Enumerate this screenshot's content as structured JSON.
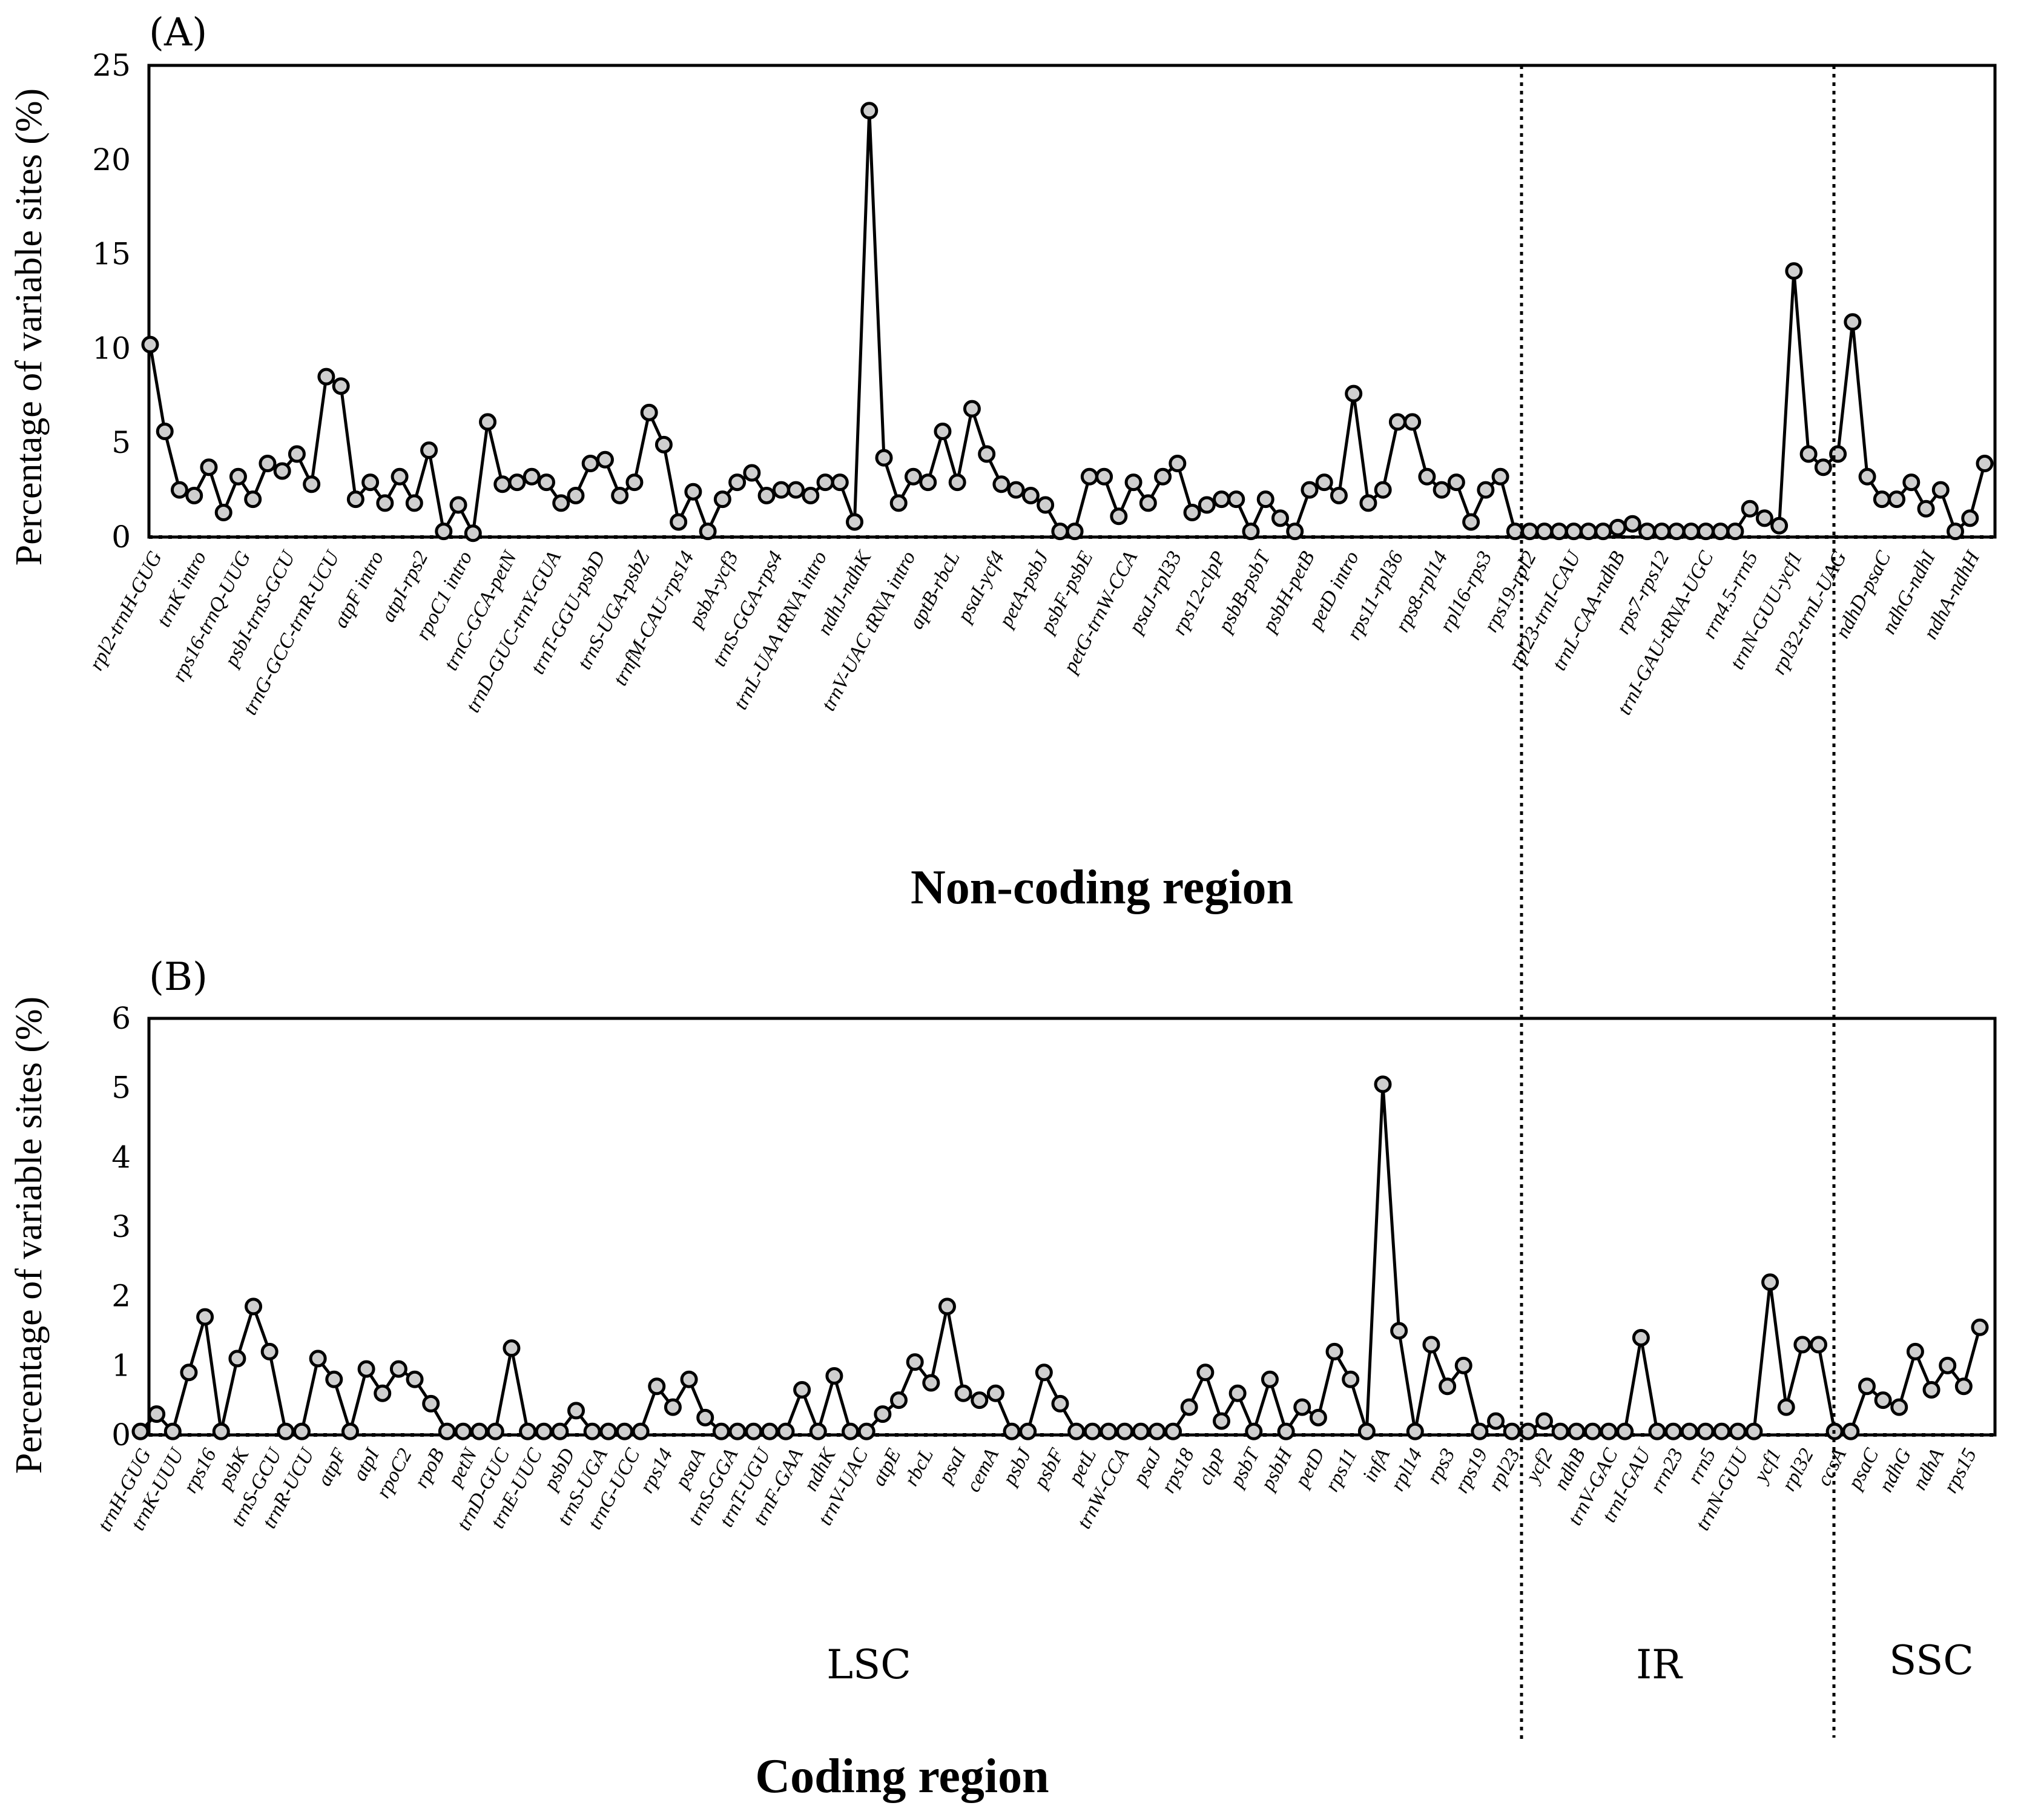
{
  "chart_data": [
    {
      "panel": "(A)",
      "type": "line",
      "ylabel": "Percentage of variable sites (%)",
      "xlabel": "Non-coding region",
      "ylim": [
        0,
        25
      ],
      "yticks": [
        0,
        5,
        10,
        15,
        20,
        25
      ],
      "series": [
        {
          "name": "Non-coding region",
          "values": [
            10.2,
            5.6,
            2.5,
            2.2,
            3.7,
            1.3,
            3.2,
            2.0,
            3.9,
            3.5,
            4.4,
            2.8,
            8.5,
            8.0,
            2.0,
            2.9,
            1.8,
            3.2,
            1.8,
            4.6,
            0.3,
            1.7,
            0.2,
            6.1,
            2.8,
            2.9,
            3.2,
            2.9,
            1.8,
            2.2,
            3.9,
            4.1,
            2.2,
            2.9,
            6.6,
            4.9,
            0.8,
            2.4,
            0.3,
            2.0,
            2.9,
            3.4,
            2.2,
            2.5,
            2.5,
            2.2,
            2.9,
            2.9,
            0.8,
            22.6,
            4.2,
            1.8,
            3.2,
            2.9,
            5.6,
            2.9,
            6.8,
            4.4,
            2.8,
            2.5,
            2.2,
            1.7,
            0.3,
            0.3,
            3.2,
            3.2,
            1.1,
            2.9,
            1.8,
            3.2,
            3.9,
            1.3,
            1.7,
            2.0,
            2.0,
            0.3,
            2.0,
            1.0,
            0.3,
            2.5,
            2.9,
            2.2,
            7.6,
            1.8,
            2.5,
            6.1,
            6.1,
            3.2,
            2.5,
            2.9,
            0.8,
            2.5,
            3.2,
            0.3,
            0.3,
            0.3,
            0.3,
            0.3,
            0.3,
            0.3,
            0.5,
            0.7,
            0.3,
            0.3,
            0.3,
            0.3,
            0.3,
            0.3,
            0.3,
            1.5,
            1.0,
            0.6,
            14.1,
            4.4,
            3.7,
            4.4,
            11.4,
            3.2,
            2.0,
            2.0,
            2.9,
            1.5,
            2.5,
            0.3,
            1.0,
            3.9
          ]
        }
      ],
      "tick_labels": [
        "rpl2-trnH-GUG",
        "trnK intro",
        "rps16-trnQ-UUG",
        "psbI-trnS-GCU",
        "trnG-GCC-trnR-UCU",
        "atpF intro",
        "atpI-rps2",
        "rpoC1 intro",
        "trnC-GCA-petN",
        "trnD-GUC-trnY-GUA",
        "trnT-GGU-psbD",
        "trnS-UGA-psbZ",
        "trnfM-CAU-rps14",
        "psbA-ycf3",
        "trnS-GGA-rps4",
        "trnL-UAA tRNA intro",
        "ndhJ-ndhK",
        "trnV-UAC tRNA intro",
        "aptB-rbcL",
        "psaI-ycf4",
        "petA-psbJ",
        "psbF-psbE",
        "petG-trnW-CCA",
        "psaJ-rpl33",
        "rps12-clpP",
        "psbB-psbT",
        "psbH-petB",
        "petD intro",
        "rps11-rpl36",
        "rps8-rpl14",
        "rpl16-rps3",
        "rps19-rpl2",
        "rpl23-trnI-CAU",
        "trnL-CAA-ndhB",
        "rps7-rps12",
        "trnI-GAU-tRNA-UGC",
        "rrn4.5-rrn5",
        "trnN-GUU-ycf1",
        "rpl32-trnL-UAG",
        "ndhD-psaC",
        "ndhG-ndhI",
        "ndhA-ndhH"
      ],
      "colors": {
        "marker_fill": "#cfcfcf",
        "line": "#000000"
      }
    },
    {
      "panel": "(B)",
      "type": "line",
      "ylabel": "Percentage of variable sites (%)",
      "xlabel": "Coding region",
      "ylim": [
        0,
        6
      ],
      "yticks": [
        0,
        1,
        2,
        3,
        4,
        5,
        6
      ],
      "series": [
        {
          "name": "Coding region",
          "values": [
            0.05,
            0.3,
            0.05,
            0.9,
            1.7,
            0.05,
            1.1,
            1.85,
            1.2,
            0.05,
            0.05,
            1.1,
            0.8,
            0.05,
            0.95,
            0.6,
            0.95,
            0.8,
            0.45,
            0.05,
            0.05,
            0.05,
            0.05,
            1.25,
            0.05,
            0.05,
            0.05,
            0.35,
            0.05,
            0.05,
            0.05,
            0.05,
            0.7,
            0.4,
            0.8,
            0.25,
            0.05,
            0.05,
            0.05,
            0.05,
            0.05,
            0.65,
            0.05,
            0.85,
            0.05,
            0.05,
            0.3,
            0.5,
            1.05,
            0.75,
            1.85,
            0.6,
            0.5,
            0.6,
            0.05,
            0.05,
            0.9,
            0.45,
            0.05,
            0.05,
            0.05,
            0.05,
            0.05,
            0.05,
            0.05,
            0.4,
            0.9,
            0.2,
            0.6,
            0.05,
            0.8,
            0.05,
            0.4,
            0.25,
            1.2,
            0.8,
            0.05,
            5.05,
            1.5,
            0.05,
            1.3,
            0.7,
            1.0,
            0.05,
            0.2,
            0.05,
            0.05,
            0.2,
            0.05,
            0.05,
            0.05,
            0.05,
            0.05,
            1.4,
            0.05,
            0.05,
            0.05,
            0.05,
            0.05,
            0.05,
            0.05,
            2.2,
            0.4,
            1.3,
            1.3,
            0.05,
            0.05,
            0.7,
            0.5,
            0.4,
            1.2,
            0.65,
            1.0,
            0.7,
            1.55
          ]
        }
      ],
      "tick_labels": [
        "trnH-GUG",
        "trnK-UUU",
        "rps16",
        "psbK",
        "trnS-GCU",
        "trnR-UCU",
        "atpF",
        "atpI",
        "rpoC2",
        "rpoB",
        "petN",
        "trnD-GUC",
        "trnE-UUC",
        "psbD",
        "trnS-UGA",
        "trnG-UCC",
        "rps14",
        "psaA",
        "trnS-GGA",
        "trnT-UGU",
        "trnF-GAA",
        "ndhK",
        "trnV-UAC",
        "atpE",
        "rbcL",
        "psaI",
        "cemA",
        "psbJ",
        "psbF",
        "petL",
        "trnW-CCA",
        "psaJ",
        "rps18",
        "clpP",
        "psbT",
        "psbH",
        "petD",
        "rps11",
        "infA",
        "rpl14",
        "rps3",
        "rps19",
        "rpl23",
        "ycf2",
        "ndhB",
        "trnV-GAC",
        "trnI-GAU",
        "rrn23",
        "rrn5",
        "trnN-GUU",
        "ycf1",
        "rpl32",
        "ccsA",
        "psaC",
        "ndhG",
        "ndhA",
        "rps15"
      ],
      "region_labels": [
        "LSC",
        "IR",
        "SSC"
      ],
      "colors": {
        "marker_fill": "#cfcfcf",
        "line": "#000000"
      }
    }
  ]
}
